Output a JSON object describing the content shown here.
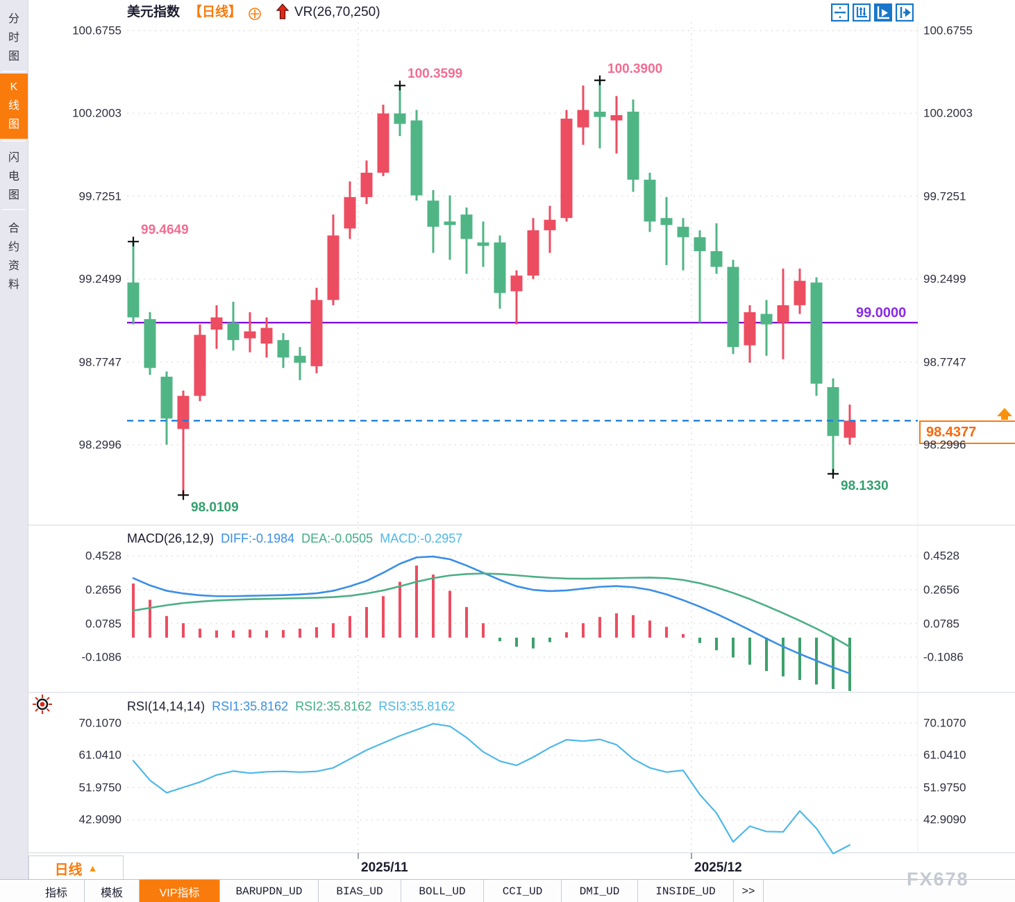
{
  "header": {
    "symbol": "美元指数",
    "period_tag": "【日线】",
    "overlay_indicator": "VR(26,70,250)",
    "toolbar_icons": [
      "move-crosshair-icon",
      "axis-scale-icon",
      "play-axis-icon",
      "jump-latest-icon"
    ]
  },
  "sidebar": {
    "tabs": [
      {
        "label": "分时图",
        "active": false
      },
      {
        "label": "K线图",
        "active": true
      },
      {
        "label": "闪电图",
        "active": false
      },
      {
        "label": "合约资料",
        "active": false
      }
    ]
  },
  "colors": {
    "up": "#ec4d61",
    "down": "#50b585",
    "accent_orange": "#f97b0c",
    "purple_line": "#7d00e0",
    "purple_text": "#8a2be2",
    "blue_dashed": "#1e7fd8",
    "diff_blue": "#3a8ee6",
    "dea_green": "#4cae85",
    "rsi_cyan": "#4db8e8",
    "pink_label": "#f26d92",
    "green_label": "#33a06e",
    "toolbar_blue": "#1976c8"
  },
  "period_selector": {
    "label": "日线",
    "arrow": "▲"
  },
  "bottom_tabs": {
    "items": [
      "指标",
      "模板",
      "VIP指标",
      "BARUPDN_UD",
      "BIAS_UD",
      "BOLL_UD",
      "CCI_UD",
      "DMI_UD",
      "INSIDE_UD",
      ">>"
    ],
    "active_index": 2
  },
  "watermark": "FX678",
  "chart_data": {
    "type": "candlestick-with-indicators",
    "color_convention": "red=up, green=down (CN)",
    "main": {
      "y_axis_labels": [
        "100.6755",
        "100.2003",
        "99.7251",
        "99.2499",
        "98.7747",
        "98.2996"
      ],
      "hline_purple": {
        "price": 99.0,
        "label": "99.0000"
      },
      "current_price_line": {
        "price": 98.4377,
        "label": "98.4377"
      },
      "annotations": [
        {
          "text": "99.4649",
          "index": 0,
          "price": 99.4649,
          "place": "above",
          "color": "pink"
        },
        {
          "text": "100.3599",
          "index": 16,
          "price": 100.3599,
          "place": "above",
          "color": "pink"
        },
        {
          "text": "100.3900",
          "index": 28,
          "price": 100.39,
          "place": "above",
          "color": "pink"
        },
        {
          "text": "98.0109",
          "index": 3,
          "price": 98.0109,
          "place": "below",
          "color": "green"
        },
        {
          "text": "98.1330",
          "index": 42,
          "price": 98.133,
          "place": "below",
          "color": "green"
        }
      ],
      "candles_ohlc": [
        [
          99.23,
          99.4649,
          98.99,
          99.03
        ],
        [
          99.02,
          99.06,
          98.7,
          98.74
        ],
        [
          98.69,
          98.72,
          98.3,
          98.45
        ],
        [
          98.39,
          98.61,
          98.0109,
          98.58
        ],
        [
          98.58,
          98.99,
          98.55,
          98.93
        ],
        [
          98.96,
          99.1,
          98.85,
          99.03
        ],
        [
          99.0,
          99.12,
          98.84,
          98.9
        ],
        [
          98.91,
          99.06,
          98.83,
          98.95
        ],
        [
          98.88,
          99.03,
          98.8,
          98.97
        ],
        [
          98.9,
          98.94,
          98.74,
          98.8
        ],
        [
          98.81,
          98.86,
          98.67,
          98.77
        ],
        [
          98.75,
          99.2,
          98.71,
          99.13
        ],
        [
          99.13,
          99.62,
          99.1,
          99.5
        ],
        [
          99.54,
          99.81,
          99.48,
          99.72
        ],
        [
          99.72,
          99.93,
          99.68,
          99.86
        ],
        [
          99.86,
          100.25,
          99.84,
          100.2
        ],
        [
          100.2,
          100.3599,
          100.07,
          100.14
        ],
        [
          100.16,
          100.22,
          99.7,
          99.73
        ],
        [
          99.7,
          99.76,
          99.4,
          99.55
        ],
        [
          99.58,
          99.73,
          99.36,
          99.56
        ],
        [
          99.62,
          99.66,
          99.28,
          99.48
        ],
        [
          99.46,
          99.58,
          99.32,
          99.44
        ],
        [
          99.46,
          99.5,
          99.08,
          99.17
        ],
        [
          99.18,
          99.3,
          98.99,
          99.27
        ],
        [
          99.27,
          99.6,
          99.25,
          99.53
        ],
        [
          99.53,
          99.67,
          99.4,
          99.59
        ],
        [
          99.6,
          100.22,
          99.58,
          100.17
        ],
        [
          100.12,
          100.36,
          100.02,
          100.22
        ],
        [
          100.21,
          100.39,
          100.0,
          100.18
        ],
        [
          100.16,
          100.3,
          99.97,
          100.19
        ],
        [
          100.21,
          100.28,
          99.75,
          99.82
        ],
        [
          99.82,
          99.86,
          99.52,
          99.58
        ],
        [
          99.6,
          99.72,
          99.33,
          99.56
        ],
        [
          99.55,
          99.6,
          99.3,
          99.49
        ],
        [
          99.49,
          99.53,
          99.0,
          99.41
        ],
        [
          99.41,
          99.57,
          99.28,
          99.32
        ],
        [
          99.32,
          99.36,
          98.82,
          98.86
        ],
        [
          98.87,
          99.1,
          98.77,
          99.06
        ],
        [
          99.05,
          99.13,
          98.81,
          98.99
        ],
        [
          99.0,
          99.31,
          98.79,
          99.1
        ],
        [
          99.1,
          99.31,
          99.05,
          99.24
        ],
        [
          99.23,
          99.26,
          98.58,
          98.65
        ],
        [
          98.63,
          98.68,
          98.133,
          98.35
        ],
        [
          98.34,
          98.53,
          98.3,
          98.4377
        ]
      ]
    },
    "macd": {
      "title": "MACD(26,12,9)",
      "diff_label": "DIFF:-0.1984",
      "dea_label": "DEA:-0.0505",
      "macd_label": "MACD:-0.2957",
      "y_axis_labels": [
        "0.4528",
        "0.2656",
        "0.0785",
        "-0.1086"
      ],
      "diff": [
        0.33,
        0.29,
        0.26,
        0.245,
        0.235,
        0.23,
        0.23,
        0.232,
        0.234,
        0.236,
        0.24,
        0.246,
        0.26,
        0.285,
        0.315,
        0.36,
        0.41,
        0.445,
        0.45,
        0.435,
        0.4,
        0.36,
        0.32,
        0.285,
        0.265,
        0.258,
        0.262,
        0.272,
        0.282,
        0.286,
        0.28,
        0.265,
        0.24,
        0.208,
        0.172,
        0.132,
        0.088,
        0.042,
        -0.005,
        -0.05,
        -0.09,
        -0.128,
        -0.165,
        -0.1984
      ],
      "dea": [
        0.15,
        0.165,
        0.18,
        0.192,
        0.2,
        0.206,
        0.21,
        0.213,
        0.215,
        0.217,
        0.219,
        0.221,
        0.225,
        0.232,
        0.245,
        0.262,
        0.285,
        0.31,
        0.33,
        0.345,
        0.353,
        0.356,
        0.353,
        0.346,
        0.338,
        0.332,
        0.328,
        0.327,
        0.328,
        0.33,
        0.332,
        0.333,
        0.33,
        0.32,
        0.302,
        0.278,
        0.248,
        0.214,
        0.176,
        0.136,
        0.094,
        0.05,
        0.002,
        -0.0505
      ],
      "bars": [
        0.3,
        0.21,
        0.12,
        0.08,
        0.05,
        0.04,
        0.04,
        0.045,
        0.04,
        0.042,
        0.05,
        0.058,
        0.08,
        0.12,
        0.17,
        0.23,
        0.31,
        0.4,
        0.35,
        0.26,
        0.17,
        0.08,
        -0.02,
        -0.05,
        -0.06,
        -0.025,
        0.03,
        0.08,
        0.115,
        0.135,
        0.125,
        0.095,
        0.06,
        0.02,
        -0.03,
        -0.07,
        -0.11,
        -0.15,
        -0.185,
        -0.215,
        -0.235,
        -0.26,
        -0.285,
        -0.2957
      ]
    },
    "rsi": {
      "title": "RSI(14,14,14)",
      "rsi1_label": "RSI1:35.8162",
      "rsi2_label": "RSI2:35.8162",
      "rsi3_label": "RSI3:35.8162",
      "y_axis_labels": [
        "70.1070",
        "61.0410",
        "51.9750",
        "42.9090"
      ],
      "values": [
        59.5,
        54.0,
        50.5,
        52.0,
        53.5,
        55.5,
        56.6,
        56.0,
        56.4,
        56.5,
        56.3,
        56.5,
        57.5,
        60.0,
        62.5,
        64.5,
        66.5,
        68.2,
        69.9,
        69.2,
        66.0,
        62.0,
        59.4,
        58.2,
        60.5,
        63.2,
        65.4,
        65.0,
        65.5,
        64.0,
        60.0,
        57.5,
        56.3,
        56.8,
        50.0,
        44.8,
        36.7,
        41.1,
        39.6,
        39.5,
        45.4,
        40.5,
        33.4,
        35.8162
      ]
    },
    "x_axis": {
      "labels": [
        {
          "text": "2025/11",
          "index": 14
        },
        {
          "text": "2025/12",
          "index": 34
        }
      ]
    }
  }
}
